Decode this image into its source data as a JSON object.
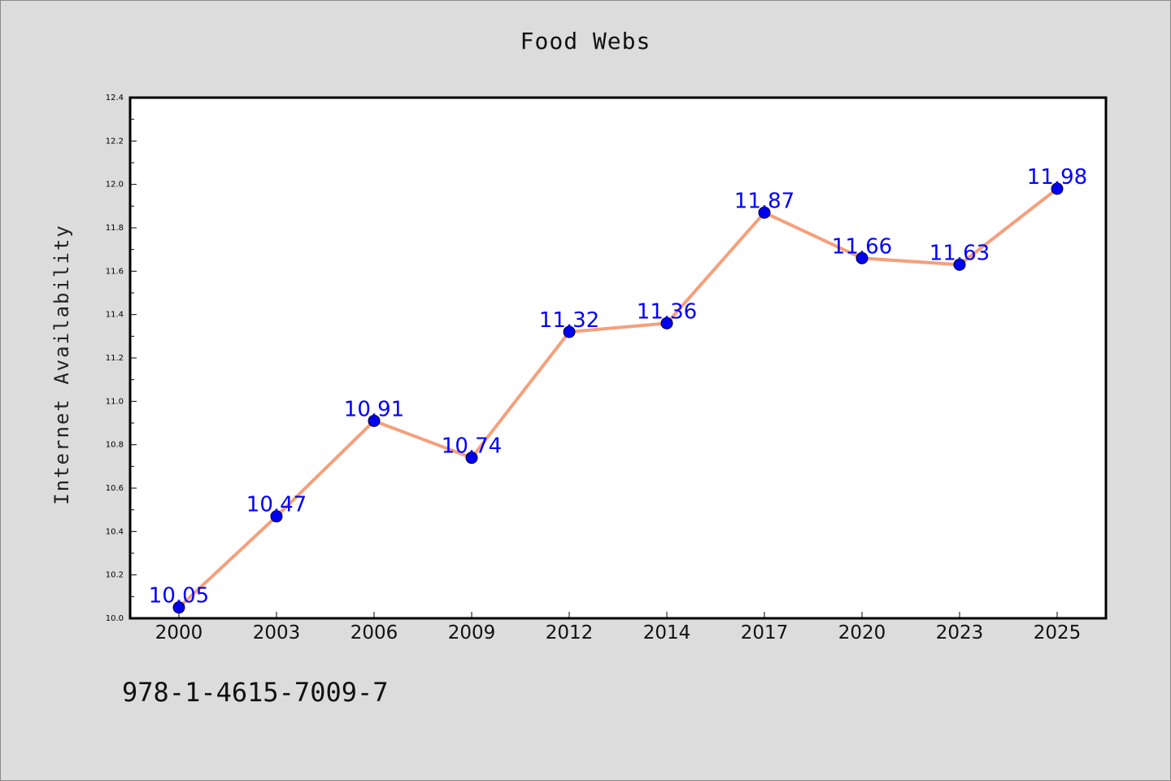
{
  "chart_data": {
    "type": "line",
    "title": "Food Webs",
    "xlabel": "",
    "ylabel": "Internet Availability",
    "categories": [
      "2000",
      "2003",
      "2006",
      "2009",
      "2012",
      "2014",
      "2017",
      "2020",
      "2023",
      "2025"
    ],
    "series": [
      {
        "values": [
          10.05,
          10.47,
          10.91,
          10.74,
          11.32,
          11.36,
          11.87,
          11.66,
          11.63,
          11.98
        ],
        "line_color": "#f4a07c",
        "marker_color": "#0000ee",
        "label_color": "#0000ff"
      }
    ],
    "ylim": [
      10.0,
      12.4
    ],
    "yticks": [
      "10.0",
      "10.2",
      "10.4",
      "10.6",
      "10.8",
      "11.0",
      "11.2",
      "11.4",
      "11.6",
      "11.8",
      "12.0",
      "12.2",
      "12.4"
    ],
    "grid": false,
    "data_labels": true
  },
  "footer": {
    "isbn": "978-1-4615-7009-7"
  },
  "colors": {
    "background": "#dcdcdc",
    "plot_area": "#ffffff",
    "axis": "#000000"
  }
}
